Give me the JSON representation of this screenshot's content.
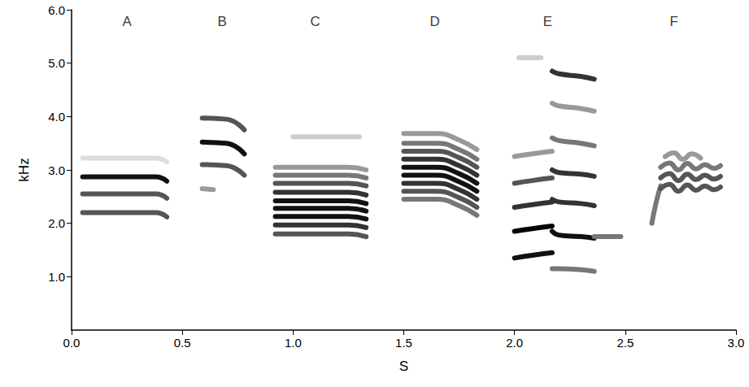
{
  "chart_data": {
    "type": "line",
    "x_label": "S",
    "y_label": "kHz",
    "xlim": [
      0,
      3
    ],
    "xticks": [
      {
        "value": 0,
        "label": "0.0"
      },
      {
        "value": 0.5,
        "label": "0.5"
      },
      {
        "value": 1,
        "label": "1.0"
      },
      {
        "value": 1.5,
        "label": "1.5"
      },
      {
        "value": 2,
        "label": "2.0"
      },
      {
        "value": 2.5,
        "label": "2.5"
      },
      {
        "value": 3,
        "label": "3.0"
      }
    ],
    "ylim": [
      0,
      6
    ],
    "yticks": [
      {
        "value": 1,
        "label": "1.0"
      },
      {
        "value": 2,
        "label": "2.0"
      },
      {
        "value": 3,
        "label": "3.0"
      },
      {
        "value": 4,
        "label": "4.0"
      },
      {
        "value": 5,
        "label": "5.0"
      },
      {
        "value": 6,
        "label": "6.0"
      }
    ],
    "grid": false,
    "marker": "none",
    "line_style": "solid",
    "annotations": [
      {
        "text": "A",
        "x": 0.25,
        "y": 5.78
      },
      {
        "text": "B",
        "x": 0.68,
        "y": 5.78
      },
      {
        "text": "C",
        "x": 1.1,
        "y": 5.78
      },
      {
        "text": "D",
        "x": 1.64,
        "y": 5.78
      },
      {
        "text": "E",
        "x": 2.15,
        "y": 5.78
      },
      {
        "text": "F",
        "x": 2.72,
        "y": 5.78
      }
    ],
    "series": [
      {
        "x": [
          0.05,
          0.38,
          0.43
        ],
        "values": [
          2.2,
          2.2,
          2.12
        ],
        "color": "#555555"
      },
      {
        "x": [
          0.05,
          0.38,
          0.43
        ],
        "values": [
          2.55,
          2.55,
          2.47
        ],
        "color": "#555555"
      },
      {
        "x": [
          0.05,
          0.38,
          0.43
        ],
        "values": [
          2.87,
          2.87,
          2.79
        ],
        "color": "#111111"
      },
      {
        "x": [
          0.05,
          0.38,
          0.43
        ],
        "values": [
          3.22,
          3.22,
          3.15
        ],
        "color": "#dddddd"
      },
      {
        "x": [
          0.59,
          0.7,
          0.78
        ],
        "values": [
          3.1,
          3.08,
          2.9
        ],
        "color": "#555555"
      },
      {
        "x": [
          0.59,
          0.7,
          0.78
        ],
        "values": [
          3.52,
          3.5,
          3.3
        ],
        "color": "#111111"
      },
      {
        "x": [
          0.59,
          0.7,
          0.78
        ],
        "values": [
          3.97,
          3.95,
          3.75
        ],
        "color": "#555555"
      },
      {
        "x": [
          0.59,
          0.64
        ],
        "values": [
          2.65,
          2.63
        ],
        "color": "#999999"
      },
      {
        "x": [
          0.92,
          1.25,
          1.33
        ],
        "values": [
          1.8,
          1.8,
          1.75
        ],
        "color": "#555555"
      },
      {
        "x": [
          0.92,
          1.25,
          1.33
        ],
        "values": [
          1.97,
          1.97,
          1.92
        ],
        "color": "#333333"
      },
      {
        "x": [
          0.92,
          1.25,
          1.33
        ],
        "values": [
          2.13,
          2.13,
          2.08
        ],
        "color": "#111111"
      },
      {
        "x": [
          0.92,
          1.25,
          1.33
        ],
        "values": [
          2.28,
          2.28,
          2.23
        ],
        "color": "#111111"
      },
      {
        "x": [
          0.92,
          1.25,
          1.33
        ],
        "values": [
          2.42,
          2.42,
          2.37
        ],
        "color": "#111111"
      },
      {
        "x": [
          0.92,
          1.25,
          1.33
        ],
        "values": [
          2.58,
          2.58,
          2.53
        ],
        "color": "#333333"
      },
      {
        "x": [
          0.92,
          1.25,
          1.33
        ],
        "values": [
          2.75,
          2.75,
          2.7
        ],
        "color": "#555555"
      },
      {
        "x": [
          0.92,
          1.25,
          1.33
        ],
        "values": [
          2.9,
          2.9,
          2.85
        ],
        "color": "#777777"
      },
      {
        "x": [
          0.92,
          1.25,
          1.33
        ],
        "values": [
          3.05,
          3.05,
          3.0
        ],
        "color": "#999999"
      },
      {
        "x": [
          1.0,
          1.3
        ],
        "values": [
          3.62,
          3.62
        ],
        "color": "#cccccc"
      },
      {
        "x": [
          1.5,
          1.65,
          1.75,
          1.83
        ],
        "values": [
          2.45,
          2.45,
          2.33,
          2.15
        ],
        "color": "#777777"
      },
      {
        "x": [
          1.5,
          1.65,
          1.75,
          1.83
        ],
        "values": [
          2.6,
          2.6,
          2.48,
          2.3
        ],
        "color": "#555555"
      },
      {
        "x": [
          1.5,
          1.65,
          1.75,
          1.83
        ],
        "values": [
          2.75,
          2.75,
          2.63,
          2.45
        ],
        "color": "#333333"
      },
      {
        "x": [
          1.5,
          1.65,
          1.75,
          1.83
        ],
        "values": [
          2.9,
          2.9,
          2.78,
          2.6
        ],
        "color": "#111111"
      },
      {
        "x": [
          1.5,
          1.65,
          1.75,
          1.83
        ],
        "values": [
          3.05,
          3.05,
          2.93,
          2.75
        ],
        "color": "#111111"
      },
      {
        "x": [
          1.5,
          1.65,
          1.75,
          1.83
        ],
        "values": [
          3.2,
          3.2,
          3.08,
          2.9
        ],
        "color": "#333333"
      },
      {
        "x": [
          1.5,
          1.65,
          1.75,
          1.83
        ],
        "values": [
          3.35,
          3.35,
          3.23,
          3.05
        ],
        "color": "#555555"
      },
      {
        "x": [
          1.5,
          1.65,
          1.75,
          1.83
        ],
        "values": [
          3.5,
          3.5,
          3.38,
          3.2
        ],
        "color": "#777777"
      },
      {
        "x": [
          1.5,
          1.65,
          1.75,
          1.83
        ],
        "values": [
          3.68,
          3.68,
          3.56,
          3.38
        ],
        "color": "#999999"
      },
      {
        "x": [
          2.0,
          2.08,
          2.17
        ],
        "values": [
          1.35,
          1.4,
          1.45
        ],
        "color": "#111111"
      },
      {
        "x": [
          2.0,
          2.08,
          2.17
        ],
        "values": [
          1.85,
          1.9,
          1.95
        ],
        "color": "#000000"
      },
      {
        "x": [
          2.0,
          2.08,
          2.17
        ],
        "values": [
          2.3,
          2.35,
          2.4
        ],
        "color": "#333333"
      },
      {
        "x": [
          2.0,
          2.08,
          2.17
        ],
        "values": [
          2.75,
          2.8,
          2.85
        ],
        "color": "#555555"
      },
      {
        "x": [
          2.0,
          2.08,
          2.17
        ],
        "values": [
          3.25,
          3.3,
          3.35
        ],
        "color": "#999999"
      },
      {
        "x": [
          2.02,
          2.12
        ],
        "values": [
          5.1,
          5.1
        ],
        "color": "#cccccc"
      },
      {
        "x": [
          2.17,
          2.2,
          2.3,
          2.36
        ],
        "values": [
          1.15,
          1.15,
          1.13,
          1.1
        ],
        "color": "#777777"
      },
      {
        "x": [
          2.17,
          2.2,
          2.3,
          2.36
        ],
        "values": [
          1.85,
          1.78,
          1.75,
          1.72
        ],
        "color": "#111111"
      },
      {
        "x": [
          2.17,
          2.2,
          2.3,
          2.36
        ],
        "values": [
          2.45,
          2.4,
          2.37,
          2.33
        ],
        "color": "#333333"
      },
      {
        "x": [
          2.17,
          2.2,
          2.3,
          2.36
        ],
        "values": [
          3.0,
          2.95,
          2.92,
          2.88
        ],
        "color": "#333333"
      },
      {
        "x": [
          2.17,
          2.2,
          2.3,
          2.36
        ],
        "values": [
          3.6,
          3.55,
          3.5,
          3.45
        ],
        "color": "#777777"
      },
      {
        "x": [
          2.17,
          2.2,
          2.3,
          2.36
        ],
        "values": [
          4.25,
          4.2,
          4.15,
          4.1
        ],
        "color": "#999999"
      },
      {
        "x": [
          2.17,
          2.2,
          2.3,
          2.36
        ],
        "values": [
          4.85,
          4.8,
          4.75,
          4.7
        ],
        "color": "#333333"
      },
      {
        "x": [
          2.36,
          2.48
        ],
        "values": [
          1.75,
          1.75
        ],
        "color": "#777777"
      },
      {
        "x": [
          2.62,
          2.64,
          2.66
        ],
        "values": [
          2.0,
          2.4,
          2.7
        ],
        "color": "#777777"
      },
      {
        "x": [
          2.66,
          2.7,
          2.74,
          2.78,
          2.82,
          2.86,
          2.9,
          2.93
        ],
        "values": [
          2.65,
          2.73,
          2.6,
          2.72,
          2.62,
          2.7,
          2.63,
          2.68
        ],
        "color": "#555555"
      },
      {
        "x": [
          2.66,
          2.7,
          2.74,
          2.78,
          2.82,
          2.86,
          2.9,
          2.93
        ],
        "values": [
          2.85,
          2.93,
          2.8,
          2.92,
          2.82,
          2.9,
          2.83,
          2.88
        ],
        "color": "#555555"
      },
      {
        "x": [
          2.66,
          2.7,
          2.74,
          2.78,
          2.82,
          2.86,
          2.9,
          2.93
        ],
        "values": [
          3.05,
          3.13,
          3.0,
          3.12,
          3.02,
          3.1,
          3.03,
          3.08
        ],
        "color": "#777777"
      },
      {
        "x": [
          2.68,
          2.72,
          2.76,
          2.8,
          2.84
        ],
        "values": [
          3.25,
          3.32,
          3.2,
          3.3,
          3.22
        ],
        "color": "#999999"
      }
    ]
  }
}
